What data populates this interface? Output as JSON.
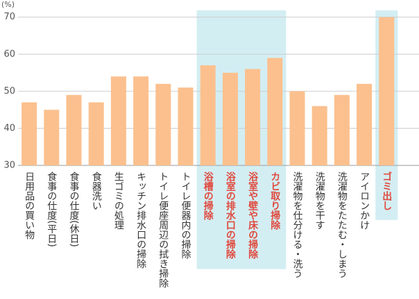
{
  "chart_data": {
    "type": "bar",
    "y_label": "(%)",
    "categories": [
      "日用品の買い物",
      "食事の仕度(平日)",
      "食事の仕度(休日)",
      "食器洗い",
      "生ゴミの処理",
      "キッチン排水口の掃除",
      "トイレ便座周辺の拭き掃除",
      "トイレ便器内の掃除",
      "浴槽の掃除",
      "浴室の排水口の掃除",
      "浴室や壁や床の掃除",
      "カビ取り掃除",
      "洗濯物を仕分ける・洗う",
      "洗濯物を干す",
      "洗濯物をたたむ・しまう",
      "アイロンかけ",
      "ゴミ出し"
    ],
    "values": [
      47,
      45,
      49,
      47,
      54,
      54,
      52,
      51,
      57,
      55,
      56,
      59,
      50,
      46,
      49,
      52,
      70
    ],
    "color": "#fbc08e",
    "highlight_groups": [
      [
        8,
        11
      ],
      [
        16,
        16
      ]
    ],
    "highlight_color": "#d3eef3",
    "highlight_label_color": "#e04a3f",
    "label_color": "#333333",
    "ylim": [
      30,
      72
    ],
    "yticks": [
      30,
      40,
      50,
      60,
      70
    ],
    "grid": true
  }
}
